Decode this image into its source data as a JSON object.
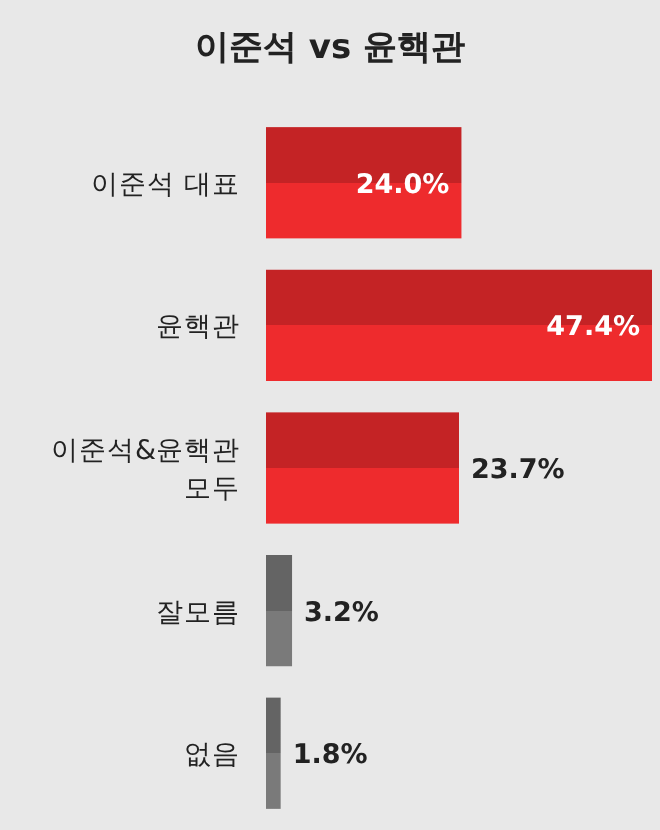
{
  "chart_data": {
    "type": "bar",
    "orientation": "horizontal",
    "title": "이준석 vs 윤핵관",
    "categories": [
      "이준석 대표",
      "윤핵관",
      "이준석&윤핵관 모두",
      "잘모름",
      "없음"
    ],
    "values": [
      24.0,
      47.4,
      23.7,
      3.2,
      1.8
    ],
    "colors": [
      "#ee2b2d",
      "#ee2b2d",
      "#ee2b2d",
      "#7a7a7a",
      "#7a7a7a"
    ],
    "value_labels": [
      "24.0%",
      "47.4%",
      "23.7%",
      "3.2%",
      "1.8%"
    ]
  }
}
